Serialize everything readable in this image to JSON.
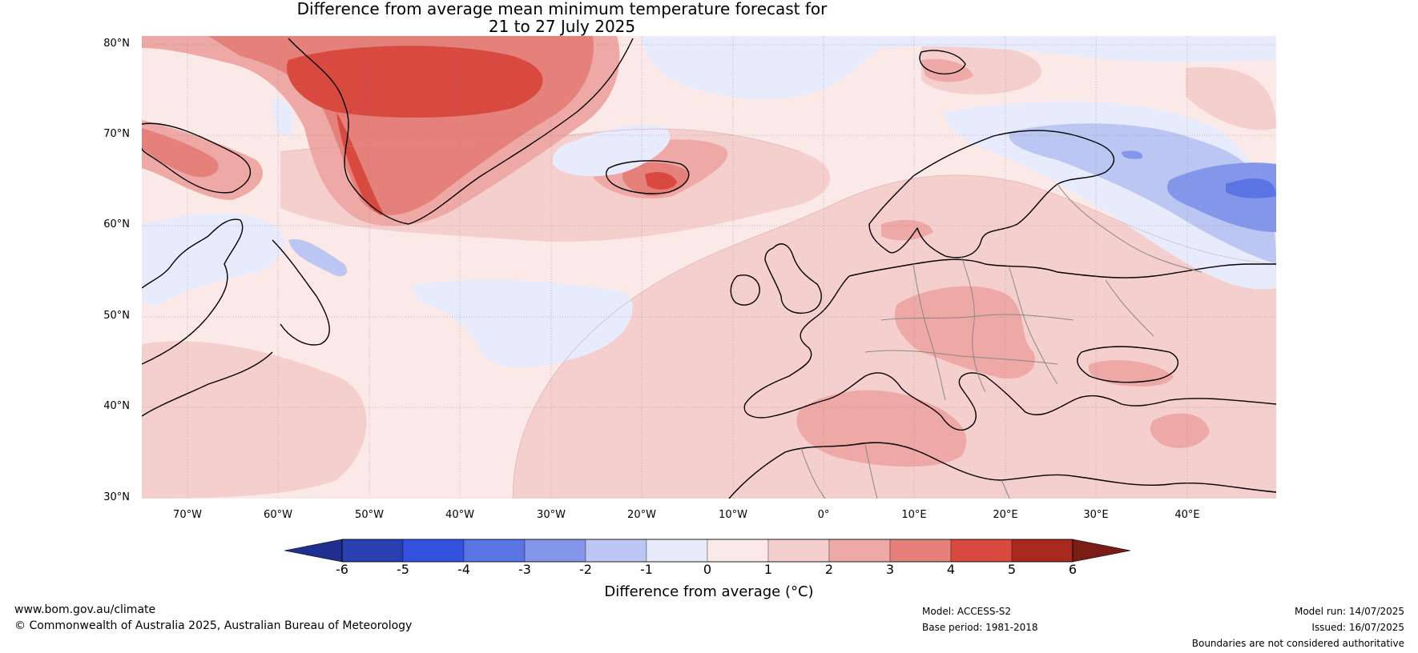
{
  "title": {
    "line1": "Difference from average mean minimum temperature forecast for",
    "line2": "21 to 27 July 2025"
  },
  "lat_labels": [
    "80°N",
    "70°N",
    "60°N",
    "50°N",
    "40°N",
    "30°N"
  ],
  "lon_labels": [
    "70°W",
    "60°W",
    "50°W",
    "40°W",
    "30°W",
    "20°W",
    "10°W",
    "0°",
    "10°E",
    "20°E",
    "30°E",
    "40°E"
  ],
  "colorbar": {
    "ticks": [
      "-6",
      "-5",
      "-4",
      "-3",
      "-2",
      "-1",
      "0",
      "1",
      "2",
      "3",
      "4",
      "5",
      "6"
    ],
    "label": "Difference from average (°C)",
    "colors": [
      "#1e2f8f",
      "#2a3fb0",
      "#3551df",
      "#5b74e4",
      "#8496ea",
      "#bcc6f2",
      "#e7ebfb",
      "#fbe9e8",
      "#f5cfcd",
      "#eea9a6",
      "#e6807a",
      "#d84a40",
      "#a7281f",
      "#7c1c16"
    ]
  },
  "footer": {
    "website": "www.bom.gov.au/climate",
    "copyright": "© Commonwealth of Australia 2025, Australian Bureau of Meteorology",
    "model": "Model: ACCESS-S2",
    "base_period": "Base period: 1981-2018",
    "model_run": "Model run: 14/07/2025",
    "issued": "Issued: 16/07/2025",
    "disclaimer": "Boundaries are not considered authoritative"
  }
}
